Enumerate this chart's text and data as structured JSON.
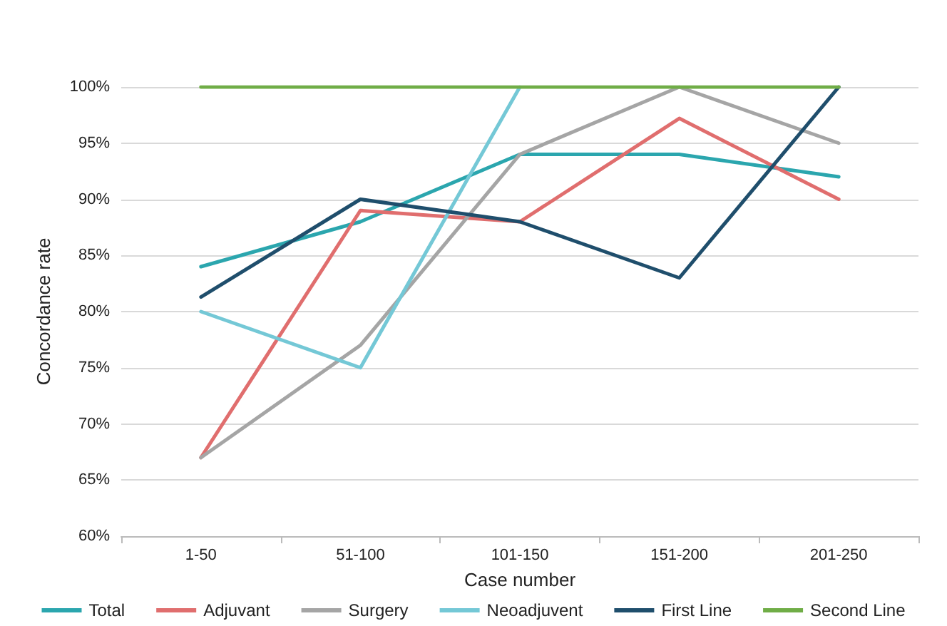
{
  "chart_data": {
    "type": "line",
    "xlabel": "Case number",
    "ylabel": "Concordance rate",
    "categories": [
      "1-50",
      "51-100",
      "101-150",
      "151-200",
      "201-250"
    ],
    "series": [
      {
        "name": "Total",
        "color": "#2ba6ae",
        "values": [
          84,
          88,
          94,
          94,
          92
        ]
      },
      {
        "name": "Adjuvant",
        "color": "#e06e6e",
        "values": [
          67,
          89,
          88,
          97.2,
          90
        ]
      },
      {
        "name": "Surgery",
        "color": "#a5a5a5",
        "values": [
          67,
          77,
          94,
          100,
          95
        ]
      },
      {
        "name": "Neoadjuvent",
        "color": "#74c8d6",
        "values": [
          80,
          75,
          100,
          null,
          null
        ]
      },
      {
        "name": "First Line",
        "color": "#1f4e6c",
        "values": [
          81.3,
          90,
          88,
          83,
          100
        ]
      },
      {
        "name": "Second Line",
        "color": "#70ad47",
        "values": [
          100,
          100,
          100,
          100,
          100
        ]
      }
    ],
    "ylim": [
      60,
      100
    ],
    "yticks": [
      {
        "value": 60,
        "label": "60%"
      },
      {
        "value": 65,
        "label": "65%"
      },
      {
        "value": 70,
        "label": "70%"
      },
      {
        "value": 75,
        "label": "75%"
      },
      {
        "value": 80,
        "label": "80%"
      },
      {
        "value": 85,
        "label": "85%"
      },
      {
        "value": 90,
        "label": "90%"
      },
      {
        "value": 95,
        "label": "95%"
      },
      {
        "value": 100,
        "label": "100%"
      }
    ],
    "grid": "y",
    "legend": "bottom",
    "marker": "none",
    "line_style": "solid"
  }
}
